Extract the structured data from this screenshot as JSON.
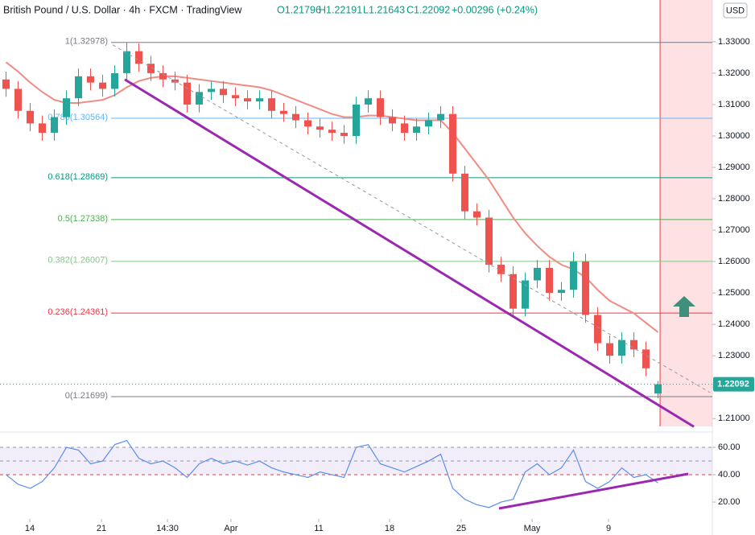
{
  "header": {
    "symbol": "British Pound / U.S. Dollar · 4h · FXCM · TradingView",
    "open": "O1.21796",
    "high": "H1.22191",
    "low": "L1.21643",
    "close": "C1.22092",
    "change": "+0.00296 (+0.24%)",
    "currency": "USD"
  },
  "chart_data": [
    {
      "type": "candlestick",
      "up_color": "#26a69a",
      "down_color": "#ef5350",
      "open": [
        1.318,
        1.315,
        1.308,
        1.304,
        1.301,
        1.306,
        1.312,
        1.319,
        1.317,
        1.315,
        1.32,
        1.327,
        1.323,
        1.32,
        1.318,
        1.317,
        1.31,
        1.314,
        1.315,
        1.313,
        1.312,
        1.311,
        1.312,
        1.308,
        1.307,
        1.305,
        1.303,
        1.302,
        1.301,
        1.3,
        1.31,
        1.312,
        1.306,
        1.304,
        1.301,
        1.303,
        1.305,
        1.307,
        1.288,
        1.276,
        1.274,
        1.259,
        1.256,
        1.245,
        1.254,
        1.258,
        1.25,
        1.251,
        1.26,
        1.243,
        1.234,
        1.23,
        1.235,
        1.232,
        1.21796
      ],
      "high": [
        1.3205,
        1.3175,
        1.3105,
        1.3065,
        1.3085,
        1.3145,
        1.3215,
        1.3215,
        1.3195,
        1.3225,
        1.3298,
        1.3295,
        1.3255,
        1.3225,
        1.3205,
        1.3195,
        1.3165,
        1.3175,
        1.3175,
        1.3155,
        1.3145,
        1.3145,
        1.3145,
        1.3105,
        1.3095,
        1.3075,
        1.3055,
        1.3045,
        1.3035,
        1.3125,
        1.3145,
        1.3145,
        1.3085,
        1.3065,
        1.3055,
        1.3075,
        1.3095,
        1.3095,
        1.2905,
        1.2785,
        1.2765,
        1.2615,
        1.2585,
        1.2565,
        1.2605,
        1.2605,
        1.2535,
        1.263,
        1.2625,
        1.2455,
        1.2365,
        1.2375,
        1.2375,
        1.2345,
        1.22191
      ],
      "low": [
        1.3125,
        1.3055,
        1.3015,
        1.2985,
        1.2985,
        1.3035,
        1.3095,
        1.3145,
        1.3125,
        1.3125,
        1.3175,
        1.3205,
        1.3175,
        1.3155,
        1.3145,
        1.3075,
        1.3075,
        1.3115,
        1.3105,
        1.3095,
        1.3085,
        1.3085,
        1.3055,
        1.3045,
        1.3025,
        1.3005,
        1.2995,
        1.2985,
        1.2975,
        1.2975,
        1.3075,
        1.3035,
        1.3015,
        1.2985,
        1.2985,
        1.3005,
        1.3025,
        1.2855,
        1.2735,
        1.2715,
        1.2565,
        1.2535,
        1.2425,
        1.2425,
        1.2515,
        1.2475,
        1.2475,
        1.2485,
        1.2405,
        1.2315,
        1.2275,
        1.2275,
        1.2295,
        1.2235,
        1.21643
      ],
      "close": [
        1.315,
        1.308,
        1.304,
        1.301,
        1.306,
        1.312,
        1.319,
        1.317,
        1.315,
        1.32,
        1.327,
        1.323,
        1.32,
        1.318,
        1.317,
        1.31,
        1.314,
        1.315,
        1.313,
        1.312,
        1.311,
        1.312,
        1.308,
        1.307,
        1.305,
        1.303,
        1.302,
        1.301,
        1.3,
        1.31,
        1.312,
        1.306,
        1.304,
        1.301,
        1.303,
        1.305,
        1.307,
        1.288,
        1.276,
        1.274,
        1.259,
        1.256,
        1.245,
        1.254,
        1.258,
        1.25,
        1.251,
        1.26,
        1.243,
        1.234,
        1.23,
        1.235,
        1.232,
        1.226,
        1.22092
      ],
      "ma": {
        "color": "#f28b82",
        "values": [
          1.3235,
          1.3205,
          1.317,
          1.314,
          1.3115,
          1.3105,
          1.3105,
          1.311,
          1.3115,
          1.313,
          1.3155,
          1.3175,
          1.3185,
          1.319,
          1.319,
          1.3185,
          1.318,
          1.3175,
          1.317,
          1.3165,
          1.316,
          1.3155,
          1.3145,
          1.313,
          1.3115,
          1.31,
          1.3085,
          1.307,
          1.306,
          1.306,
          1.3065,
          1.3065,
          1.306,
          1.3055,
          1.305,
          1.305,
          1.305,
          1.301,
          1.296,
          1.291,
          1.286,
          1.28,
          1.274,
          1.269,
          1.265,
          1.2615,
          1.259,
          1.2575,
          1.255,
          1.251,
          1.2475,
          1.2455,
          1.2435,
          1.2405,
          1.2375
        ]
      },
      "fib_levels": [
        {
          "label": "1(1.32978)",
          "value": 1.32978,
          "color": "#787b86"
        },
        {
          "label": "0.786(1.30564)",
          "value": 1.30564,
          "color": "#64b5f6"
        },
        {
          "label": "0.618(1.28669)",
          "value": 1.28669,
          "color": "#089981"
        },
        {
          "label": "0.5(1.27338)",
          "value": 1.27338,
          "color": "#4caf50"
        },
        {
          "label": "0.382(1.26007)",
          "value": 1.26007,
          "color": "#81c784"
        },
        {
          "label": "0.236(1.24361)",
          "value": 1.24361,
          "color": "#f23645"
        },
        {
          "label": "0(1.21699)",
          "value": 1.21699,
          "color": "#787b86"
        }
      ],
      "trendlines": [
        {
          "x": [
            10.33,
            57.47
          ],
          "y": [
            1.318,
            1.2074
          ],
          "color": "#9c27b0",
          "dashed": false
        },
        {
          "x": [
            9.33,
            58.8
          ],
          "y": [
            1.329,
            1.2183
          ],
          "color": "#9598a1",
          "dashed": true
        }
      ],
      "highlight_xlim": [
        54.67,
        59
      ],
      "highlight_color": "#f23645",
      "last_price": 1.22092,
      "xlim": [
        0,
        59
      ],
      "ylim": [
        1.2075,
        1.3433
      ],
      "yticks": [
        {
          "value": 1.21,
          "label": "1.21000"
        },
        {
          "value": 1.22,
          "label": "1.22000"
        },
        {
          "value": 1.23,
          "label": "1.23000"
        },
        {
          "value": 1.24,
          "label": "1.24000"
        },
        {
          "value": 1.25,
          "label": "1.25000"
        },
        {
          "value": 1.26,
          "label": "1.26000"
        },
        {
          "value": 1.27,
          "label": "1.27000"
        },
        {
          "value": 1.28,
          "label": "1.28000"
        },
        {
          "value": 1.29,
          "label": "1.29000"
        },
        {
          "value": 1.3,
          "label": "1.30000"
        },
        {
          "value": 1.31,
          "label": "1.31000"
        },
        {
          "value": 1.32,
          "label": "1.32000"
        },
        {
          "value": 1.33,
          "label": "1.33000"
        }
      ]
    },
    {
      "type": "line",
      "color": "#5b8def",
      "values": [
        40,
        33,
        30,
        35,
        45,
        60,
        58,
        48,
        50,
        62,
        65,
        52,
        48,
        50,
        45,
        38,
        48,
        52,
        48,
        50,
        47,
        50,
        45,
        42,
        40,
        38,
        42,
        40,
        38,
        60,
        62,
        48,
        45,
        42,
        46,
        50,
        55,
        30,
        22,
        18,
        16,
        20,
        22,
        42,
        48,
        40,
        45,
        58,
        35,
        30,
        35,
        45,
        38,
        40,
        34
      ],
      "bands": [
        {
          "value": 60,
          "color": "#9598a1"
        },
        {
          "value": 50,
          "color": "#9598a1"
        },
        {
          "value": 40,
          "color": "#f23645"
        }
      ],
      "trendlines": [
        {
          "x": [
            41.33,
            57
          ],
          "y": [
            15.3,
            40.6
          ],
          "color": "#9c27b0"
        }
      ],
      "xlim": [
        0,
        59
      ],
      "ylim": [
        10.6,
        66.5
      ],
      "yticks": [
        {
          "value": 20,
          "label": "20.00"
        },
        {
          "value": 40,
          "label": "40.00"
        },
        {
          "value": 60,
          "label": "60.00"
        }
      ],
      "xticks": [
        {
          "value": 2.47,
          "label": "14"
        },
        {
          "value": 8.4,
          "label": "21"
        },
        {
          "value": 13.87,
          "label": "14:30"
        },
        {
          "value": 19.13,
          "label": "Apr"
        },
        {
          "value": 26.4,
          "label": "11"
        },
        {
          "value": 32.27,
          "label": "18"
        },
        {
          "value": 38.2,
          "label": "25"
        },
        {
          "value": 44.07,
          "label": "May"
        },
        {
          "value": 50.4,
          "label": "9"
        }
      ]
    }
  ]
}
